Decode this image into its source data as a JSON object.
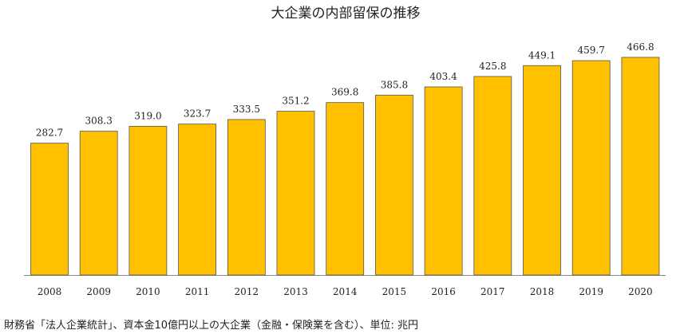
{
  "chart_data": {
    "type": "bar",
    "title": "大企業の内部留保の推移",
    "categories": [
      "2008",
      "2009",
      "2010",
      "2011",
      "2012",
      "2013",
      "2014",
      "2015",
      "2016",
      "2017",
      "2018",
      "2019",
      "2020"
    ],
    "values": [
      282.7,
      308.3,
      319.0,
      323.7,
      333.5,
      351.2,
      369.8,
      385.8,
      403.4,
      425.8,
      449.1,
      459.7,
      466.8
    ],
    "value_labels": [
      "282.7",
      "308.3",
      "319.0",
      "323.7",
      "333.5",
      "351.2",
      "369.8",
      "385.8",
      "403.4",
      "425.8",
      "449.1",
      "459.7",
      "466.8"
    ],
    "color": "#ffc000",
    "source": "財務省「法人企業統計」、資本金10億円以上の大企業（金融・保険業を含む）、単位: 兆円"
  }
}
